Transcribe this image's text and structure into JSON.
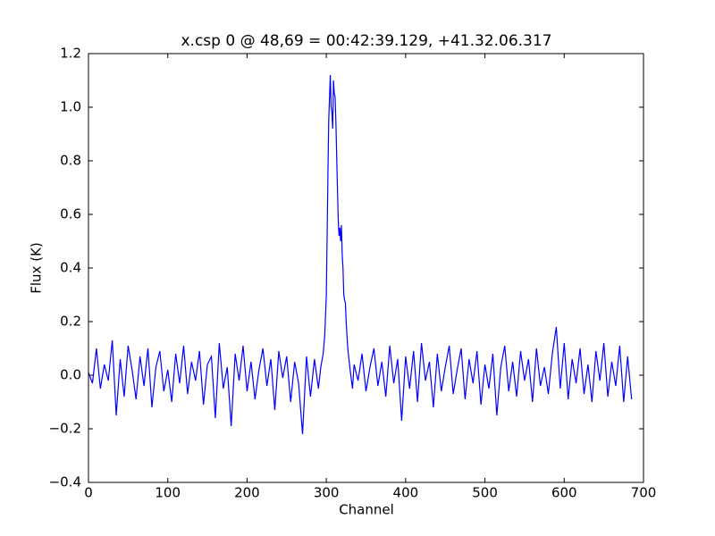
{
  "chart_data": {
    "type": "line",
    "title": "x.csp 0 @ 48,69 = 00:42:39.129, +41.32.06.317",
    "x_label": "Channel",
    "y_label": "Flux (K)",
    "xlim": [
      0,
      700
    ],
    "xticks": [
      0,
      100,
      200,
      300,
      400,
      500,
      600,
      700
    ],
    "ylim": [
      -0.4,
      1.2
    ],
    "yticks": [
      {
        "value": -0.4,
        "label": "−0.4"
      },
      {
        "value": -0.2,
        "label": "−0.2"
      },
      {
        "value": 0,
        "label": "0.0"
      },
      0.2,
      0.4,
      0.6,
      0.8,
      {
        "value": 1,
        "label": "1.0"
      },
      1.2
    ],
    "grid": false,
    "series": [
      {
        "color": "#0000ff",
        "x": [
          0,
          5,
          10,
          15,
          20,
          25,
          30,
          35,
          40,
          45,
          50,
          55,
          60,
          65,
          70,
          75,
          80,
          85,
          90,
          95,
          100,
          105,
          110,
          115,
          120,
          125,
          130,
          135,
          140,
          145,
          150,
          155,
          160,
          165,
          170,
          175,
          180,
          185,
          190,
          195,
          200,
          205,
          210,
          215,
          220,
          225,
          230,
          235,
          240,
          245,
          250,
          255,
          260,
          265,
          270,
          275,
          280,
          285,
          290,
          293,
          296,
          298,
          300,
          302,
          303,
          305,
          306,
          307,
          308,
          309,
          310,
          311,
          312,
          313,
          314,
          315,
          316,
          317,
          318,
          319,
          320,
          321,
          322,
          323,
          324,
          325,
          327,
          330,
          333,
          335,
          340,
          345,
          350,
          355,
          360,
          365,
          370,
          375,
          380,
          385,
          390,
          395,
          400,
          405,
          410,
          415,
          420,
          425,
          430,
          435,
          440,
          445,
          450,
          455,
          460,
          465,
          470,
          475,
          480,
          485,
          490,
          495,
          500,
          505,
          510,
          515,
          520,
          525,
          530,
          535,
          540,
          545,
          550,
          555,
          560,
          565,
          570,
          575,
          580,
          585,
          590,
          595,
          600,
          605,
          610,
          615,
          620,
          625,
          630,
          635,
          640,
          645,
          650,
          655,
          660,
          665,
          670,
          675,
          680,
          685
        ],
        "values": [
          0.01,
          -0.03,
          0.1,
          -0.05,
          0.04,
          -0.02,
          0.13,
          -0.15,
          0.06,
          -0.08,
          0.11,
          0.02,
          -0.09,
          0.07,
          -0.04,
          0.1,
          -0.12,
          0.03,
          0.09,
          -0.06,
          0.02,
          -0.1,
          0.08,
          -0.03,
          0.11,
          -0.07,
          0.05,
          -0.02,
          0.09,
          -0.11,
          0.04,
          0.07,
          -0.16,
          0.12,
          -0.05,
          0.03,
          -0.19,
          0.08,
          -0.02,
          0.11,
          -0.06,
          0.05,
          -0.09,
          0.02,
          0.1,
          -0.04,
          0.06,
          -0.13,
          0.09,
          -0.01,
          0.07,
          -0.1,
          0.05,
          -0.03,
          -0.22,
          0.07,
          -0.08,
          0.06,
          -0.05,
          0.03,
          0.08,
          0.15,
          0.3,
          0.75,
          0.95,
          1.12,
          1.0,
          0.98,
          0.92,
          1.1,
          1.05,
          1.04,
          0.95,
          0.82,
          0.7,
          0.58,
          0.52,
          0.55,
          0.5,
          0.56,
          0.45,
          0.4,
          0.3,
          0.28,
          0.27,
          0.2,
          0.1,
          0.02,
          -0.05,
          0.04,
          -0.02,
          0.08,
          -0.06,
          0.03,
          0.1,
          -0.04,
          0.05,
          -0.08,
          0.11,
          -0.03,
          0.06,
          -0.17,
          0.07,
          -0.05,
          0.09,
          -0.1,
          0.12,
          -0.02,
          0.05,
          -0.12,
          0.08,
          -0.06,
          0.03,
          0.11,
          -0.07,
          0.02,
          0.1,
          -0.09,
          0.06,
          -0.03,
          0.09,
          -0.11,
          0.04,
          -0.05,
          0.08,
          -0.15,
          0.03,
          0.11,
          -0.06,
          0.05,
          -0.08,
          0.09,
          -0.02,
          0.06,
          -0.1,
          0.1,
          -0.04,
          0.03,
          -0.07,
          0.08,
          0.18,
          -0.05,
          0.12,
          -0.09,
          0.06,
          -0.03,
          0.1,
          -0.07,
          0.04,
          -0.1,
          0.09,
          -0.02,
          0.12,
          -0.08,
          0.05,
          -0.04,
          0.11,
          -0.1,
          0.07,
          -0.09
        ]
      }
    ]
  }
}
